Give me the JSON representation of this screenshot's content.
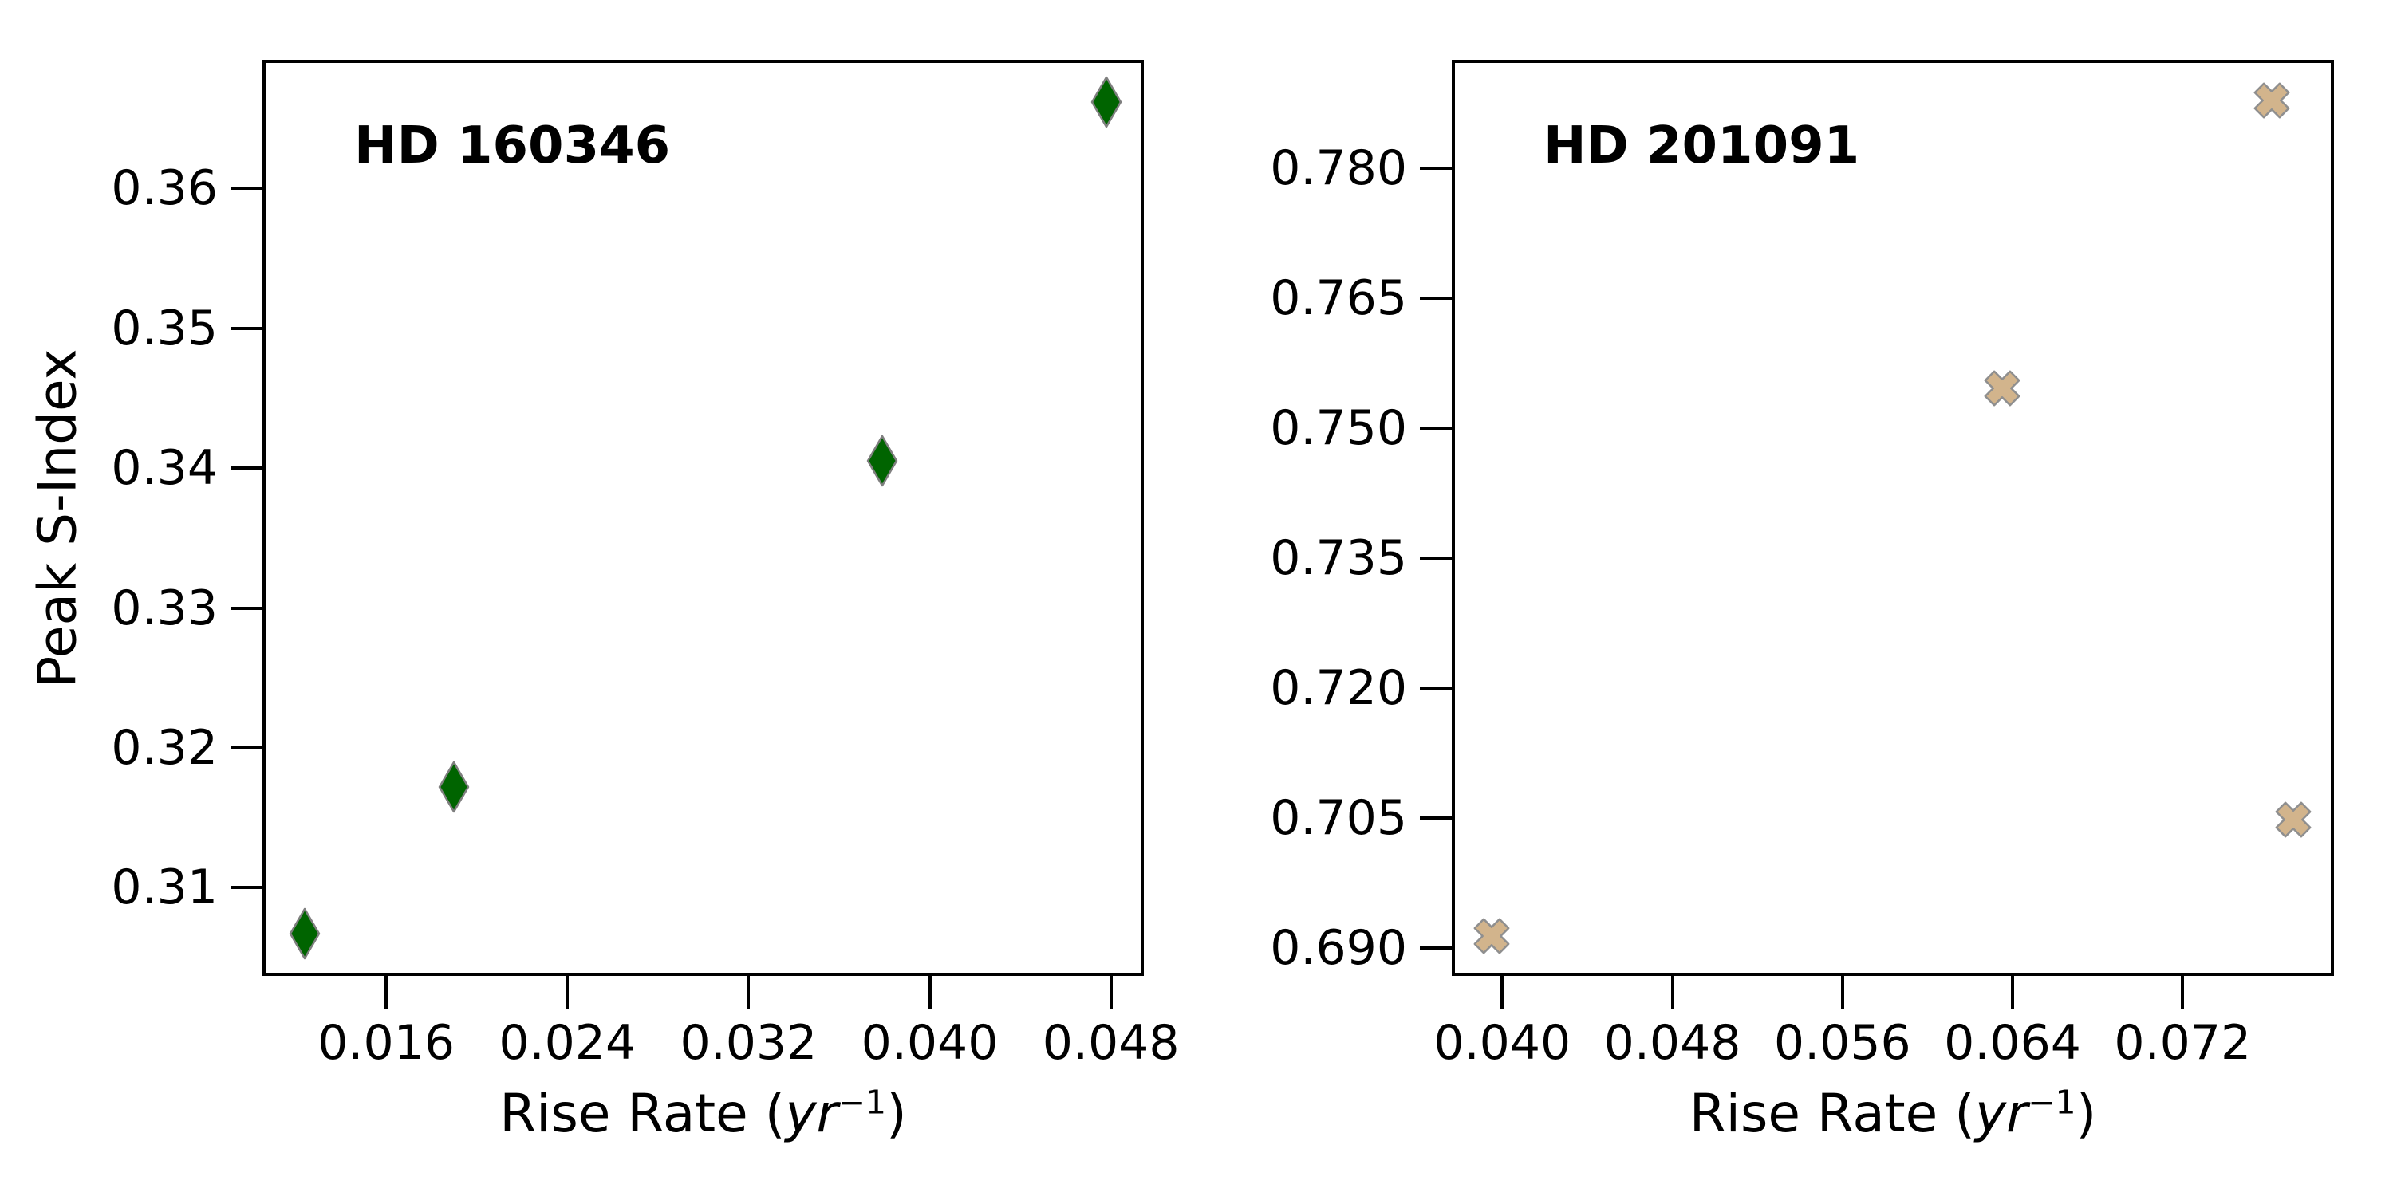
{
  "figure": {
    "background": "#ffffff",
    "spine_color": "#000000"
  },
  "ylabel": "Peak S-Index",
  "xlabel_parts": {
    "prefix": "Rise Rate (",
    "italic": "yr",
    "sup": "−1",
    "suffix": ")"
  },
  "chart_data": [
    {
      "type": "scatter",
      "title": "HD 160346",
      "marker": "thin_diamond",
      "marker_color": "#006400",
      "marker_edge_color": "#7f7f7f",
      "xlabel": "Rise Rate (yr^-1)",
      "ylabel": "Peak S-Index",
      "xlim": [
        0.010535,
        0.049456
      ],
      "ylim": [
        0.3037,
        0.3692
      ],
      "grid": false,
      "legend": "none",
      "xticks": {
        "values": [
          0.016,
          0.024,
          0.032,
          0.04,
          0.048
        ],
        "labels": [
          "0.016",
          "0.024",
          "0.032",
          "0.040",
          "0.048"
        ]
      },
      "yticks": {
        "values": [
          0.31,
          0.32,
          0.33,
          0.34,
          0.35,
          0.36
        ],
        "labels": [
          "0.31",
          "0.32",
          "0.33",
          "0.34",
          "0.35",
          "0.36"
        ]
      },
      "points": [
        {
          "x": 0.0124,
          "y": 0.3067
        },
        {
          "x": 0.019,
          "y": 0.3172
        },
        {
          "x": 0.0379,
          "y": 0.3405
        },
        {
          "x": 0.0478,
          "y": 0.3662
        }
      ]
    },
    {
      "type": "scatter",
      "title": "HD 201091",
      "marker": "x_filled",
      "marker_color": "#d2b48c",
      "marker_edge_color": "#8f8f8f",
      "xlabel": "Rise Rate (yr^-1)",
      "xlim": [
        0.037625,
        0.079116
      ],
      "ylim": [
        0.6868,
        0.7925
      ],
      "grid": false,
      "legend": "none",
      "xticks": {
        "values": [
          0.04,
          0.048,
          0.056,
          0.064,
          0.072
        ],
        "labels": [
          "0.040",
          "0.048",
          "0.056",
          "0.064",
          "0.072"
        ]
      },
      "yticks": {
        "values": [
          0.69,
          0.705,
          0.72,
          0.735,
          0.75,
          0.765,
          0.78
        ],
        "labels": [
          "0.690",
          "0.705",
          "0.720",
          "0.735",
          "0.750",
          "0.765",
          "0.780"
        ]
      },
      "points": [
        {
          "x": 0.0395,
          "y": 0.6914
        },
        {
          "x": 0.0635,
          "y": 0.7546
        },
        {
          "x": 0.0762,
          "y": 0.7878
        },
        {
          "x": 0.0772,
          "y": 0.7048
        }
      ]
    }
  ]
}
